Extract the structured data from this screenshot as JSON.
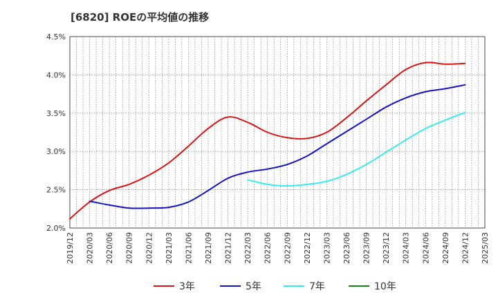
{
  "chart_data": {
    "type": "line",
    "title": "[6820]  ROEの平均値の推移",
    "xlabel": "",
    "ylabel": "",
    "ylim": [
      2.0,
      4.5
    ],
    "yticks": [
      "2.0%",
      "2.5%",
      "3.0%",
      "3.5%",
      "4.0%",
      "4.5%"
    ],
    "categories": [
      "2019/12",
      "2020/03",
      "2020/06",
      "2020/09",
      "2020/12",
      "2021/03",
      "2021/06",
      "2021/09",
      "2021/12",
      "2022/03",
      "2022/06",
      "2022/09",
      "2022/12",
      "2023/03",
      "2023/06",
      "2023/09",
      "2023/12",
      "2024/03",
      "2024/06",
      "2024/09",
      "2024/12",
      "2025/03"
    ],
    "grid": true,
    "legend_position": "bottom",
    "series": [
      {
        "name": "3年",
        "color": "#dd1111",
        "values": [
          2.12,
          2.34,
          2.49,
          2.57,
          2.69,
          2.85,
          3.07,
          3.3,
          3.45,
          3.38,
          3.25,
          3.18,
          3.17,
          3.25,
          3.44,
          3.66,
          3.87,
          4.07,
          4.16,
          4.14,
          4.15,
          null
        ]
      },
      {
        "name": "5年",
        "color": "#1111cc",
        "values": [
          null,
          2.35,
          2.3,
          2.26,
          2.26,
          2.27,
          2.34,
          2.49,
          2.65,
          2.73,
          2.77,
          2.83,
          2.94,
          3.1,
          3.26,
          3.42,
          3.58,
          3.7,
          3.78,
          3.82,
          3.87,
          null
        ]
      },
      {
        "name": "7年",
        "color": "#33eeee",
        "values": [
          null,
          null,
          null,
          null,
          null,
          null,
          null,
          null,
          null,
          2.63,
          2.57,
          2.55,
          2.57,
          2.61,
          2.7,
          2.83,
          2.99,
          3.15,
          3.3,
          3.41,
          3.51,
          null
        ]
      },
      {
        "name": "10年",
        "color": "#118811",
        "values": [
          null,
          null,
          null,
          null,
          null,
          null,
          null,
          null,
          null,
          null,
          null,
          null,
          null,
          null,
          null,
          null,
          null,
          null,
          null,
          null,
          null,
          null
        ]
      }
    ]
  }
}
